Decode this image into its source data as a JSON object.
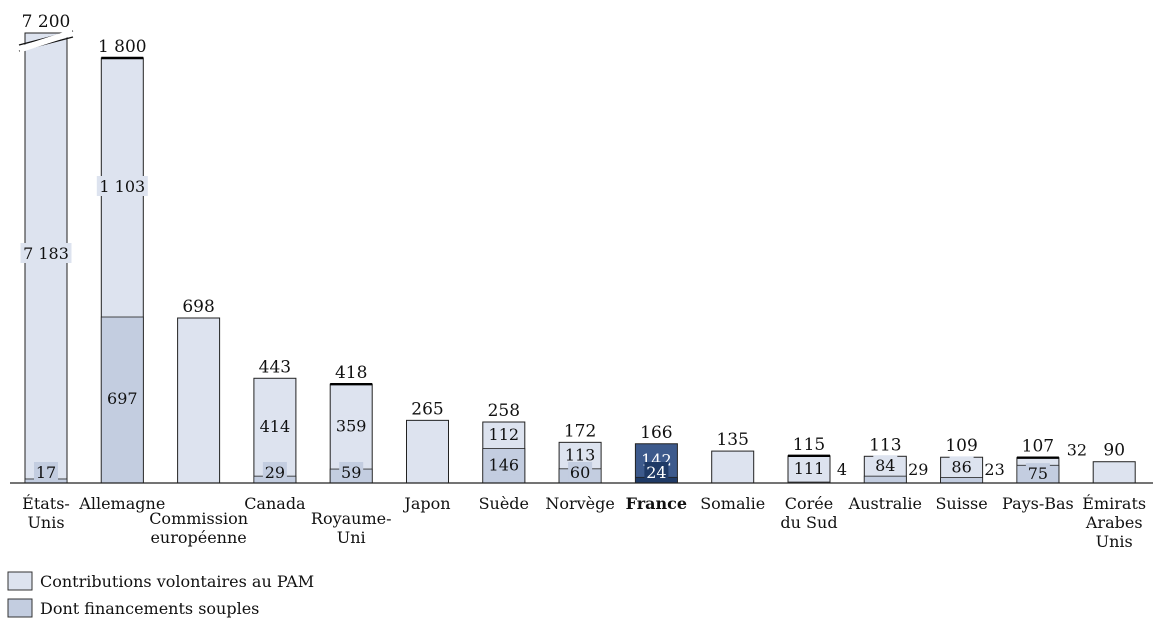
{
  "chart_data": {
    "type": "bar",
    "stacked": true,
    "y_axis_break": {
      "category": "États-Unis",
      "displayed_total": "7 200"
    },
    "categories": [
      {
        "name": "États-\nUnis",
        "total_label": "7 200",
        "total": 7200,
        "soft": 17,
        "soft_label": "17",
        "mid_label": "7 183",
        "outline": "thin"
      },
      {
        "name": "Allemagne",
        "small": true,
        "total_label": "1 800",
        "total": 1800,
        "soft": 697,
        "soft_label": "697",
        "mid_label": "1 103",
        "outline": "thick"
      },
      {
        "name": "Commission\neuropéenne",
        "total_label": "698",
        "total": 698,
        "soft": 0
      },
      {
        "name": "Canada",
        "total_label": "443",
        "total": 443,
        "soft": 29,
        "soft_label": "29",
        "mid_label": "414"
      },
      {
        "name": "Royaume-\nUni",
        "total_label": "418",
        "total": 418,
        "soft": 59,
        "soft_label": "59",
        "mid_label": "359",
        "outline": "thick"
      },
      {
        "name": "Japon",
        "total_label": "265",
        "total": 265,
        "soft": 0
      },
      {
        "name": "Suède",
        "total_label": "258",
        "total": 258,
        "soft": 146,
        "soft_label": "146",
        "mid_label": "112"
      },
      {
        "name": "Norvège",
        "total_label": "172",
        "total": 172,
        "soft": 60,
        "soft_label": "60",
        "mid_label": "113"
      },
      {
        "name": "France",
        "bold": true,
        "total_label": "166",
        "total": 166,
        "soft": 24,
        "soft_label": "24",
        "mid_label": "142",
        "highlight": true
      },
      {
        "name": "Somalie",
        "total_label": "135",
        "total": 135,
        "soft": 0
      },
      {
        "name": "Corée\ndu Sud",
        "total_label": "115",
        "total": 115,
        "soft": 4,
        "soft_label": "4",
        "mid_label": "111",
        "outline": "thick",
        "soft_label_outside": true
      },
      {
        "name": "Australie",
        "total_label": "113",
        "total": 113,
        "soft": 29,
        "soft_label": "29",
        "mid_label": "84",
        "soft_label_outside": true
      },
      {
        "name": "Suisse",
        "total_label": "109",
        "total": 109,
        "soft": 23,
        "soft_label": "23",
        "mid_label": "86",
        "soft_label_outside": true
      },
      {
        "name": "Pays-Bas",
        "total_label": "107",
        "total": 107,
        "soft": 75,
        "soft_label": "75",
        "mid_label": "32",
        "outline": "thick",
        "swap_labels": true
      },
      {
        "name": "Émirats\nArabes\nUnis",
        "total_label": "90",
        "total": 90,
        "soft": 0
      }
    ],
    "series": [
      {
        "name": "Contributions volontaires au PAM",
        "color": "#dde3ef"
      },
      {
        "name": "Dont financements souples",
        "color": "#c3cde0"
      }
    ],
    "highlight_colors": {
      "light": "#3d5a8c",
      "dark": "#1f3a66"
    },
    "legend": [
      {
        "label": "Contributions volontaires au PAM",
        "color": "#dde3ef"
      },
      {
        "label": "Dont financements souples",
        "color": "#c3cde0"
      }
    ],
    "legend_position": "bottom-left"
  }
}
